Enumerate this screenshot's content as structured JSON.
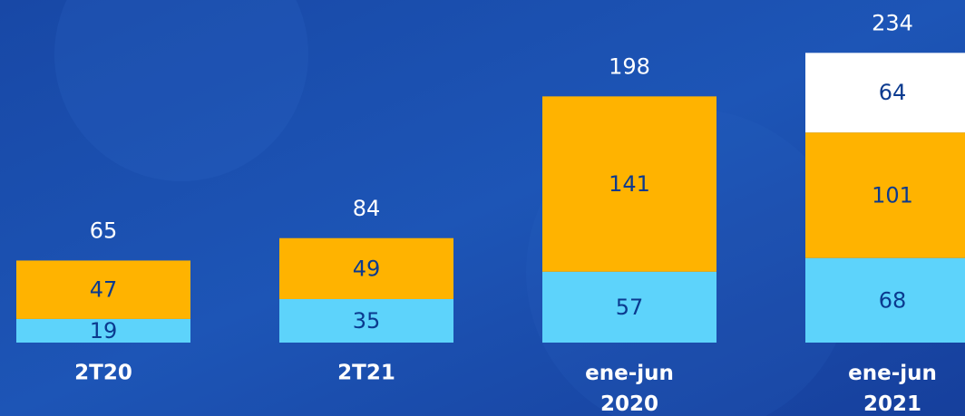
{
  "chart_data": {
    "type": "stacked-bar",
    "categories": [
      "2T20",
      "2T21",
      "ene-jun 2020",
      "ene-jun 2021"
    ],
    "series": [
      {
        "color": "#5dd3fb",
        "values": [
          19,
          35,
          57,
          68
        ]
      },
      {
        "color": "#ffb300",
        "values": [
          47,
          49,
          141,
          101
        ]
      },
      {
        "color": "#ffffff",
        "values": [
          null,
          null,
          null,
          64
        ]
      }
    ],
    "totals": [
      65,
      84,
      198,
      234
    ],
    "ylim": [
      0,
      250
    ]
  }
}
